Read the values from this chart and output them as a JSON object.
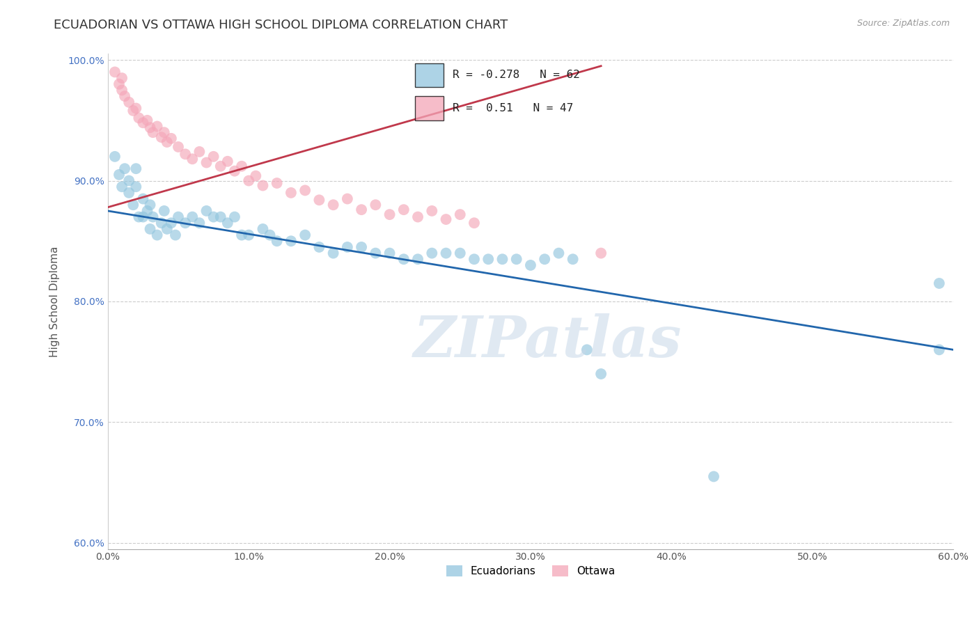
{
  "title": "ECUADORIAN VS OTTAWA HIGH SCHOOL DIPLOMA CORRELATION CHART",
  "source": "Source: ZipAtlas.com",
  "xlabel": "",
  "ylabel": "High School Diploma",
  "watermark": "ZIPatlas",
  "legend_blue_label": "Ecuadorians",
  "legend_pink_label": "Ottawa",
  "blue_R": -0.278,
  "blue_N": 62,
  "pink_R": 0.51,
  "pink_N": 47,
  "xlim": [
    0.0,
    0.6
  ],
  "ylim": [
    0.595,
    1.005
  ],
  "x_ticks": [
    0.0,
    0.1,
    0.2,
    0.3,
    0.4,
    0.5,
    0.6
  ],
  "x_tick_labels": [
    "0.0%",
    "10.0%",
    "20.0%",
    "30.0%",
    "40.0%",
    "50.0%",
    "60.0%"
  ],
  "y_ticks": [
    0.6,
    0.7,
    0.8,
    0.9,
    1.0
  ],
  "y_tick_labels": [
    "60.0%",
    "70.0%",
    "80.0%",
    "90.0%",
    "100.0%"
  ],
  "blue_color": "#92c5de",
  "pink_color": "#f4a6b8",
  "blue_line_color": "#2166ac",
  "pink_line_color": "#c0384b",
  "background_color": "#ffffff",
  "grid_color": "#cccccc",
  "title_fontsize": 13,
  "blue_scatter_x": [
    0.005,
    0.008,
    0.01,
    0.012,
    0.015,
    0.015,
    0.018,
    0.02,
    0.02,
    0.022,
    0.025,
    0.025,
    0.028,
    0.03,
    0.03,
    0.032,
    0.035,
    0.038,
    0.04,
    0.042,
    0.045,
    0.048,
    0.05,
    0.055,
    0.06,
    0.065,
    0.07,
    0.075,
    0.08,
    0.085,
    0.09,
    0.095,
    0.1,
    0.11,
    0.115,
    0.12,
    0.13,
    0.14,
    0.15,
    0.16,
    0.17,
    0.18,
    0.19,
    0.2,
    0.21,
    0.22,
    0.23,
    0.24,
    0.25,
    0.26,
    0.27,
    0.28,
    0.29,
    0.3,
    0.31,
    0.32,
    0.33,
    0.34,
    0.35,
    0.59,
    0.59,
    0.43
  ],
  "blue_scatter_y": [
    0.92,
    0.905,
    0.895,
    0.91,
    0.9,
    0.89,
    0.88,
    0.895,
    0.91,
    0.87,
    0.885,
    0.87,
    0.875,
    0.88,
    0.86,
    0.87,
    0.855,
    0.865,
    0.875,
    0.86,
    0.865,
    0.855,
    0.87,
    0.865,
    0.87,
    0.865,
    0.875,
    0.87,
    0.87,
    0.865,
    0.87,
    0.855,
    0.855,
    0.86,
    0.855,
    0.85,
    0.85,
    0.855,
    0.845,
    0.84,
    0.845,
    0.845,
    0.84,
    0.84,
    0.835,
    0.835,
    0.84,
    0.84,
    0.84,
    0.835,
    0.835,
    0.835,
    0.835,
    0.83,
    0.835,
    0.84,
    0.835,
    0.76,
    0.74,
    0.815,
    0.76,
    0.655
  ],
  "pink_scatter_x": [
    0.005,
    0.008,
    0.01,
    0.01,
    0.012,
    0.015,
    0.018,
    0.02,
    0.022,
    0.025,
    0.028,
    0.03,
    0.032,
    0.035,
    0.038,
    0.04,
    0.042,
    0.045,
    0.05,
    0.055,
    0.06,
    0.065,
    0.07,
    0.075,
    0.08,
    0.085,
    0.09,
    0.095,
    0.1,
    0.105,
    0.11,
    0.12,
    0.13,
    0.14,
    0.15,
    0.16,
    0.17,
    0.18,
    0.19,
    0.2,
    0.21,
    0.22,
    0.23,
    0.24,
    0.25,
    0.26,
    0.35
  ],
  "pink_scatter_y": [
    0.99,
    0.98,
    0.985,
    0.975,
    0.97,
    0.965,
    0.958,
    0.96,
    0.952,
    0.948,
    0.95,
    0.944,
    0.94,
    0.945,
    0.936,
    0.94,
    0.932,
    0.935,
    0.928,
    0.922,
    0.918,
    0.924,
    0.915,
    0.92,
    0.912,
    0.916,
    0.908,
    0.912,
    0.9,
    0.904,
    0.896,
    0.898,
    0.89,
    0.892,
    0.884,
    0.88,
    0.885,
    0.876,
    0.88,
    0.872,
    0.876,
    0.87,
    0.875,
    0.868,
    0.872,
    0.865,
    0.84
  ],
  "blue_line_x0": 0.0,
  "blue_line_x1": 0.6,
  "blue_line_y0": 0.875,
  "blue_line_y1": 0.76,
  "pink_line_x0": 0.0,
  "pink_line_x1": 0.35,
  "pink_line_y0": 0.878,
  "pink_line_y1": 0.995
}
